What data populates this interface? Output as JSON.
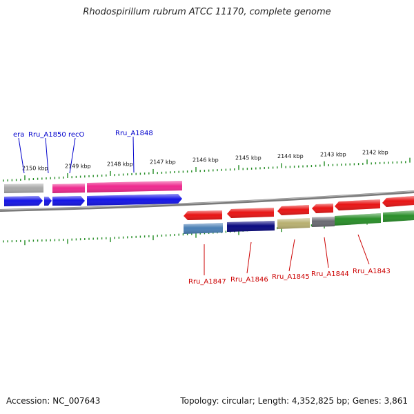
{
  "title": "Rhodospirillum rubrum ATCC 11170, complete genome",
  "accession_label": "Accession: NC_007643",
  "summary_label": "Topology: circular; Length: 4,352,825 bp; Genes: 3,861",
  "colors": {
    "forward_label": "#0000cc",
    "reverse_label": "#cc0000",
    "tick": "#228b22",
    "tick_label": "#111111",
    "backbone": "#888888"
  },
  "scale_ticks": [
    "2150 kbp",
    "2149 kbp",
    "2148 kbp",
    "2147 kbp",
    "2146 kbp",
    "2145 kbp",
    "2144 kbp",
    "2143 kbp",
    "2142 kbp"
  ],
  "forward_labels": [
    "era",
    "Rru_A1850",
    "recO",
    "Rru_A1848"
  ],
  "reverse_labels": [
    "Rru_A1847",
    "Rru_A1846",
    "Rru_A1845",
    "Rru_A1844",
    "Rru_A1843"
  ],
  "feature_colors": {
    "gene_fwd": "#1515e6",
    "gene_rev": "#e81515",
    "cds_gray": "#a8a8a8",
    "cds_pink": "#ee2a8f",
    "cds_steelblue": "#4a7fb5",
    "cds_navy": "#0a0a80",
    "cds_khaki": "#b8b070",
    "cds_darkgray": "#6a6a72",
    "cds_green": "#2a8f2a"
  }
}
